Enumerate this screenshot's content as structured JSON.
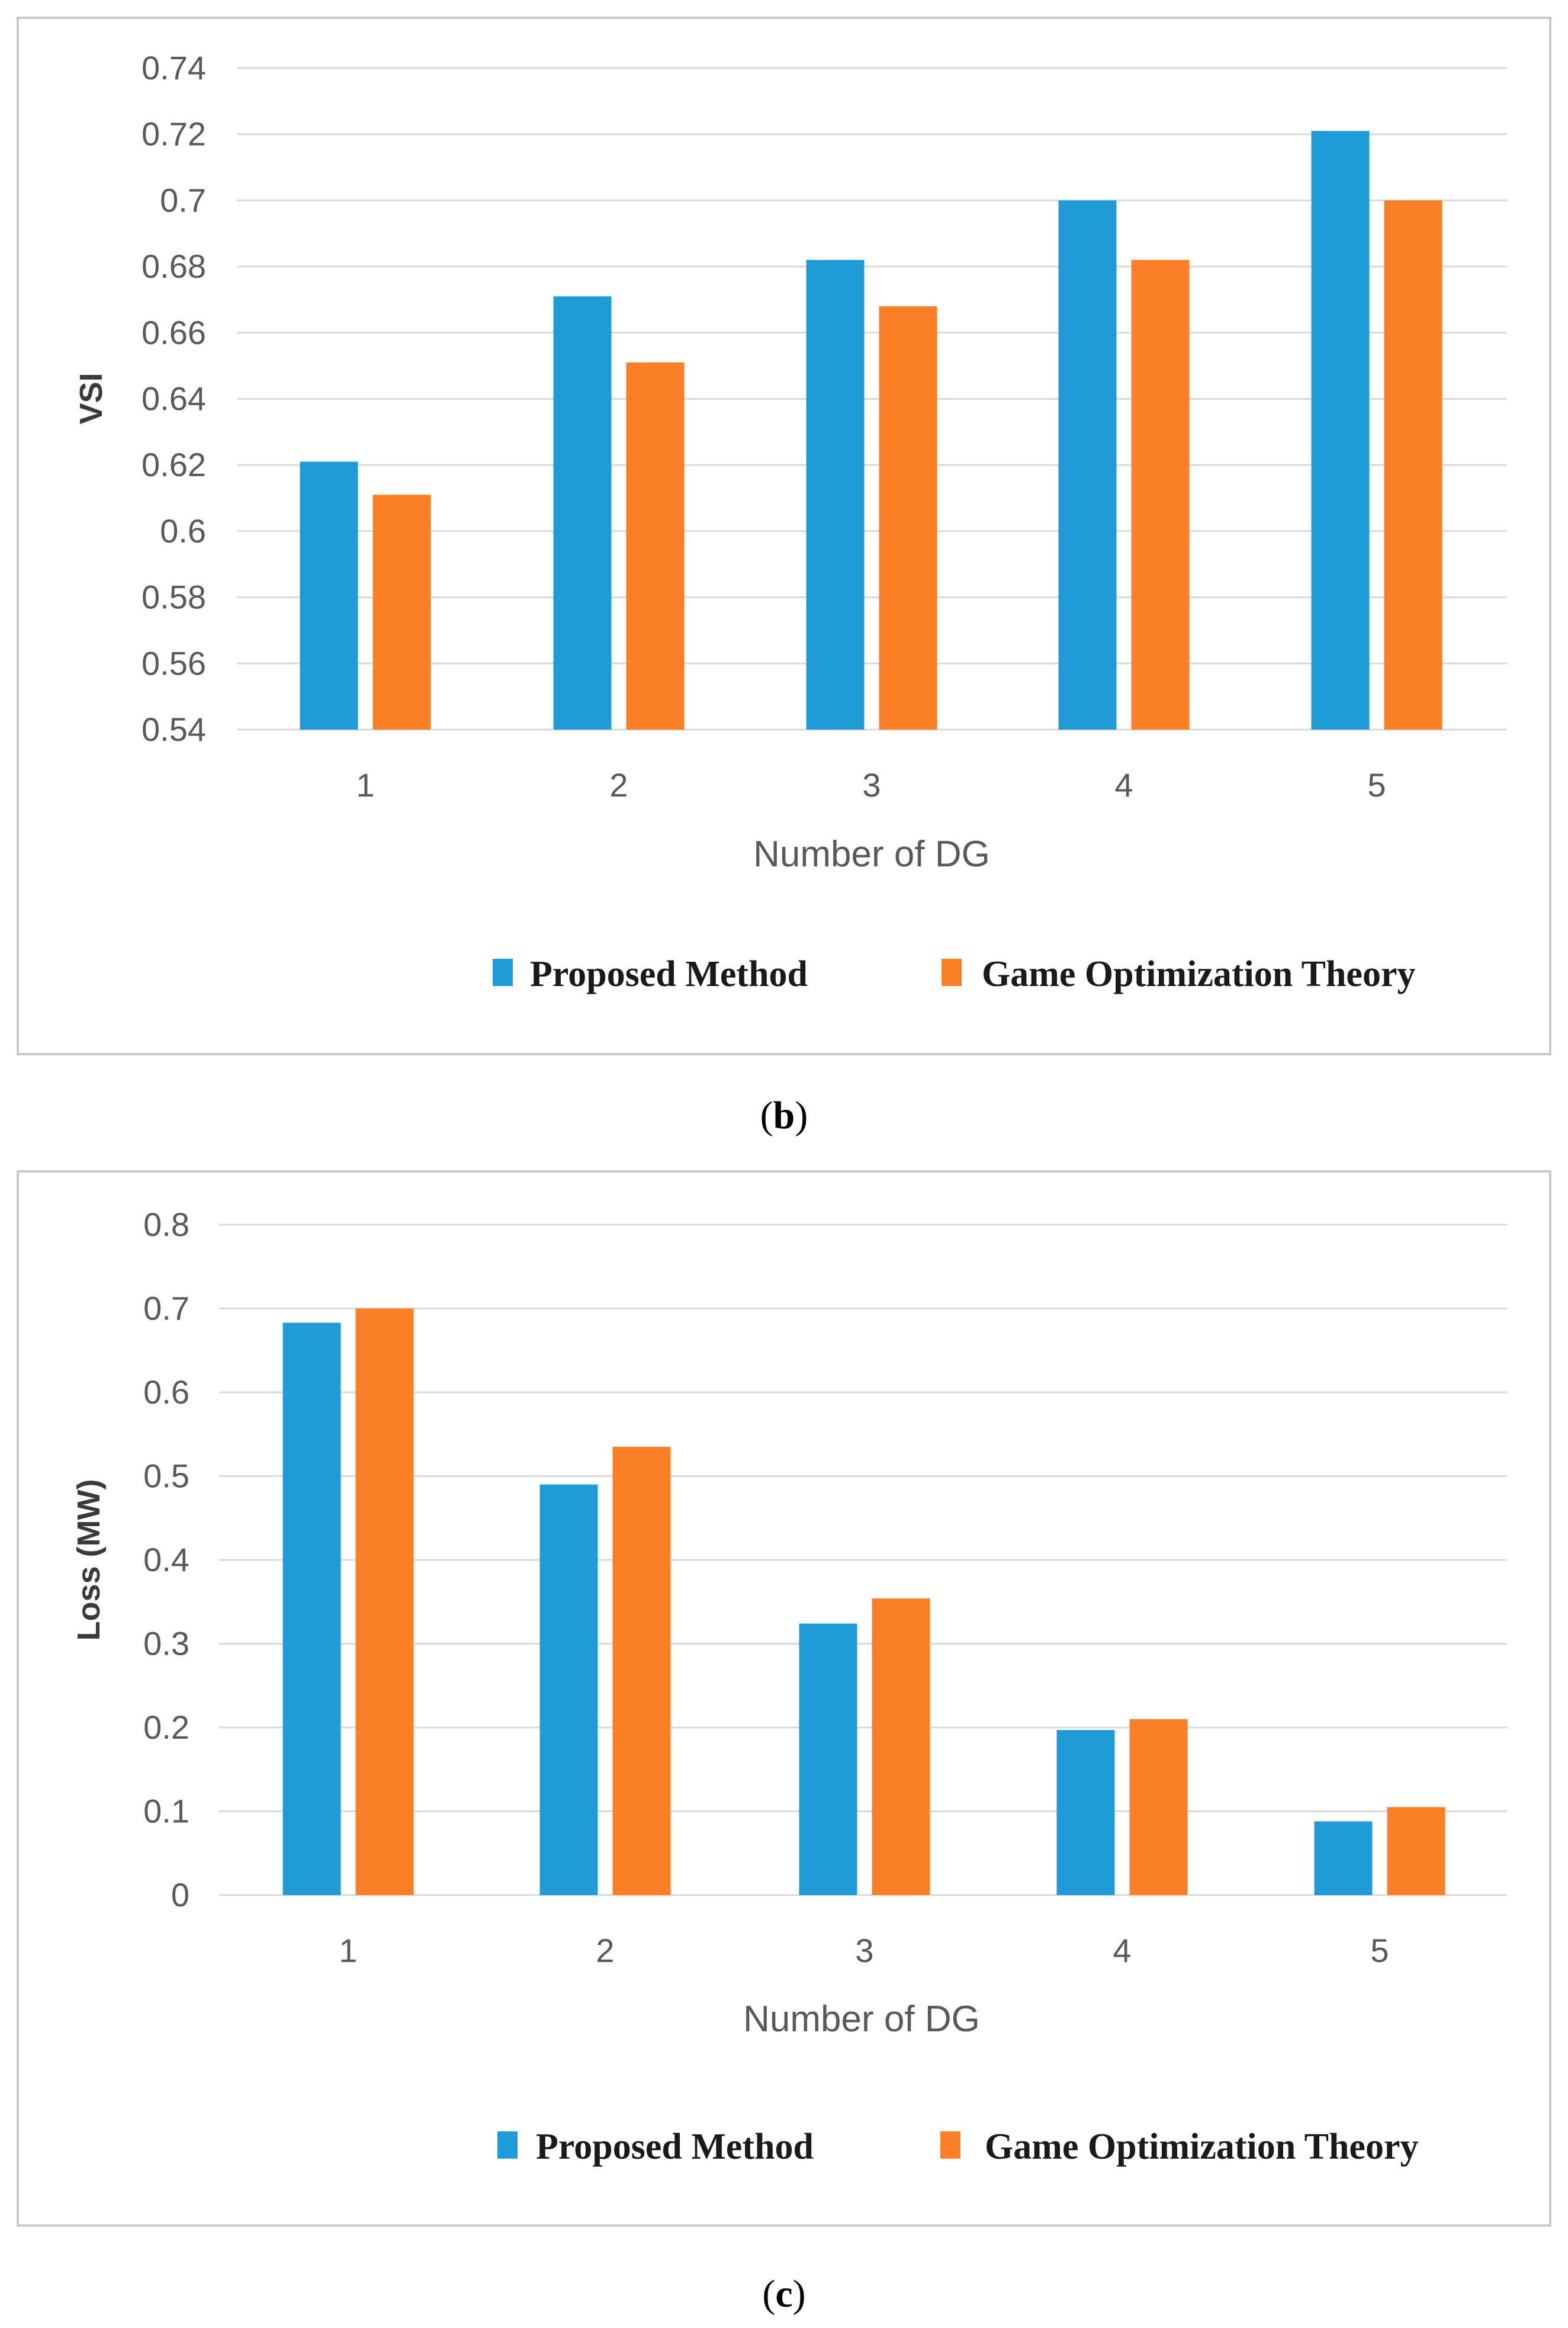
{
  "colors": {
    "proposed": "#1f9cd8",
    "game": "#fb7f26",
    "grid": "#d9d9d9",
    "frame": "#c8c8c8"
  },
  "chart_data": [
    {
      "type": "bar",
      "panel_letter": "b",
      "categories": [
        "1",
        "2",
        "3",
        "4",
        "5"
      ],
      "series": [
        {
          "name": "Proposed Method",
          "values": [
            0.621,
            0.671,
            0.682,
            0.7,
            0.721
          ]
        },
        {
          "name": "Game Optimization Theory",
          "values": [
            0.611,
            0.651,
            0.668,
            0.682,
            0.7
          ]
        }
      ],
      "title": "",
      "xlabel": "Number of DG",
      "ylabel": "VSI",
      "ylim": [
        0.54,
        0.74
      ],
      "yticks": [
        "0.74",
        "0.72",
        "0.7",
        "0.68",
        "0.66",
        "0.64",
        "0.62",
        "0.6",
        "0.58",
        "0.56",
        "0.54"
      ],
      "grid": true,
      "legend": "bottom"
    },
    {
      "type": "bar",
      "panel_letter": "c",
      "categories": [
        "1",
        "2",
        "3",
        "4",
        "5"
      ],
      "series": [
        {
          "name": "Proposed Method",
          "values": [
            0.683,
            0.49,
            0.324,
            0.197,
            0.088
          ]
        },
        {
          "name": "Game Optimization Theory",
          "values": [
            0.7,
            0.535,
            0.354,
            0.21,
            0.105
          ]
        }
      ],
      "title": "",
      "xlabel": "Number of DG",
      "ylabel": "Loss (MW)",
      "ylim": [
        0,
        0.8
      ],
      "yticks": [
        "0.8",
        "0.7",
        "0.6",
        "0.5",
        "0.4",
        "0.3",
        "0.2",
        "0.1",
        "0"
      ],
      "grid": true,
      "legend": "bottom"
    }
  ]
}
